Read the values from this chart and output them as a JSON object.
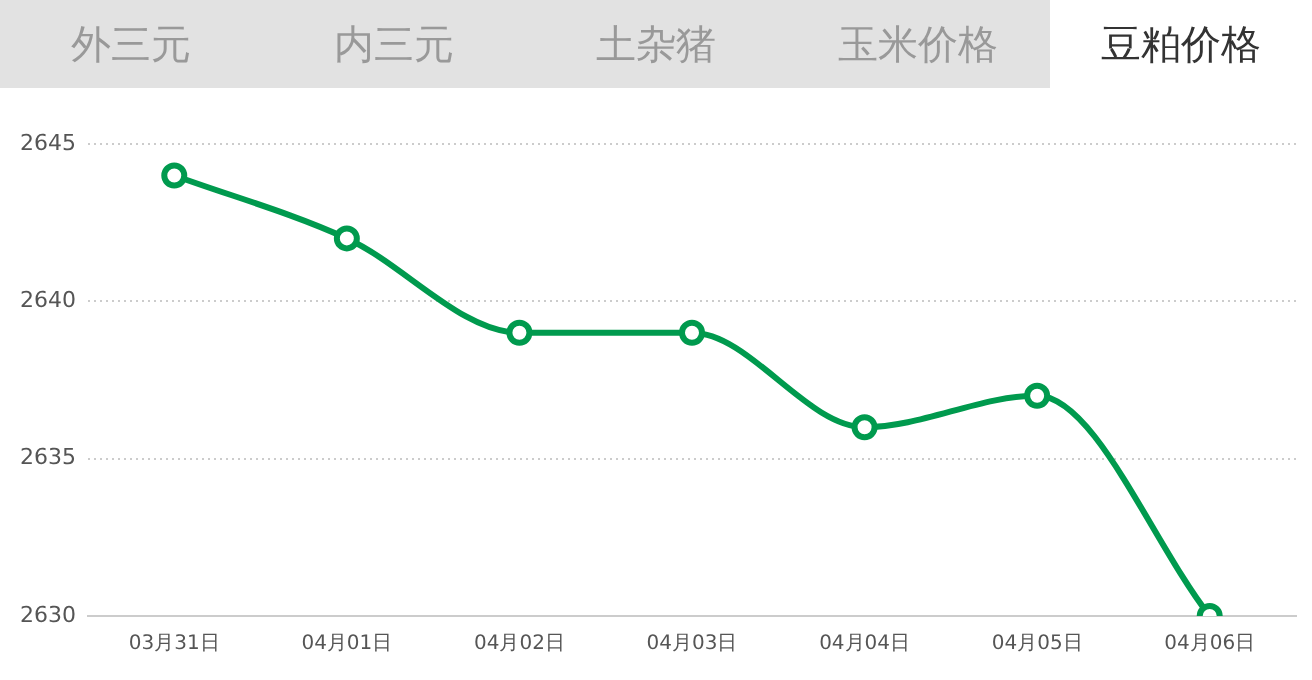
{
  "chart_data": {
    "type": "line",
    "title": "豆粕价格",
    "annotations": [
      "外三元",
      "内三元",
      "土杂猪",
      "玉米价格"
    ],
    "categories": [
      "03月31日",
      "04月01日",
      "04月02日",
      "04月03日",
      "04月04日",
      "04月05日",
      "04月06日"
    ],
    "series": [
      {
        "color": "#009a4e",
        "values": [
          2644,
          2642,
          2639,
          2639,
          2636,
          2637,
          2630
        ]
      }
    ],
    "ylim": [
      2630,
      2645
    ],
    "yticks": [
      2630,
      2635,
      2640,
      2645
    ],
    "grid": "y",
    "legend": false,
    "marker": "circle",
    "line_style": "solid"
  }
}
